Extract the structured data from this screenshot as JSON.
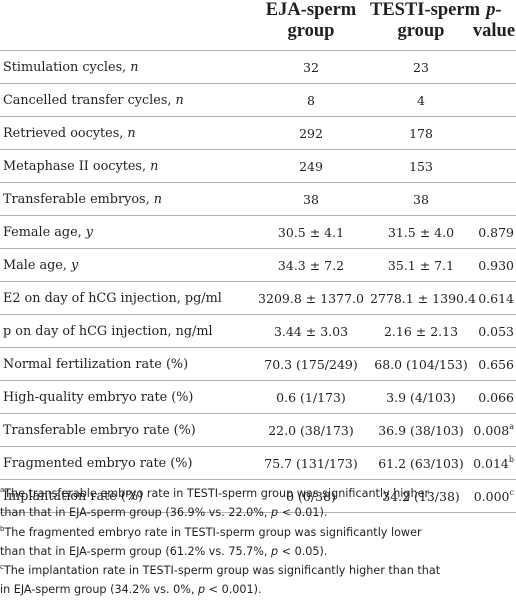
{
  "headers": [
    {
      "line1": "",
      "line2": ""
    },
    {
      "line1": "EJA-sperm",
      "line2": "group"
    },
    {
      "line1": "TESTI-sperm",
      "line2": "group"
    },
    {
      "line1": "p-",
      "line2": "value"
    }
  ],
  "rows": [
    {
      "label": "Stimulation cycles, ",
      "unit": "n",
      "ej": "32",
      "testi": "23",
      "p": "",
      "sup": ""
    },
    {
      "label": "Cancelled transfer cycles, ",
      "unit": "n",
      "ej": "8",
      "testi": "4",
      "p": "",
      "sup": ""
    },
    {
      "label": "Retrieved oocytes, ",
      "unit": "n",
      "ej": "292",
      "testi": "178",
      "p": "",
      "sup": ""
    },
    {
      "label": "Metaphase II oocytes, ",
      "unit": "n",
      "ej": "249",
      "testi": "153",
      "p": "",
      "sup": ""
    },
    {
      "label": "Transferable embryos, ",
      "unit": "n",
      "ej": "38",
      "testi": "38",
      "p": "",
      "sup": ""
    },
    {
      "label": "Female age, ",
      "unit": "y",
      "ej": "30.5 ± 4.1",
      "testi": "31.5 ± 4.0",
      "p": "0.879",
      "sup": ""
    },
    {
      "label": "Male age, ",
      "unit": "y",
      "ej": "34.3 ± 7.2",
      "testi": "35.1 ± 7.1",
      "p": "0.930",
      "sup": ""
    },
    {
      "label": "E2 on day of hCG injection, pg/ml",
      "unit": "",
      "ej": "3209.8 ± 1377.0",
      "testi": "2778.1 ± 1390.4",
      "p": "0.614",
      "sup": ""
    },
    {
      "label": "p on day of hCG injection, ng/ml",
      "unit": "",
      "ej": "3.44 ± 3.03",
      "testi": "2.16 ± 2.13",
      "p": "0.053",
      "sup": ""
    },
    {
      "label": "Normal fertilization rate (%)",
      "unit": "",
      "ej": "70.3 (175/249)",
      "testi": "68.0 (104/153)",
      "p": "0.656",
      "sup": ""
    },
    {
      "label": "High-quality embryo rate (%)",
      "unit": "",
      "ej": "0.6 (1/173)",
      "testi": "3.9 (4/103)",
      "p": "0.066",
      "sup": ""
    },
    {
      "label": "Transferable embryo rate (%)",
      "unit": "",
      "ej": "22.0 (38/173)",
      "testi": "36.9 (38/103)",
      "p": "0.008",
      "sup": "a"
    },
    {
      "label": "Fragmented embryo rate (%)",
      "unit": "",
      "ej": "75.7 (131/173)",
      "testi": "61.2 (63/103)",
      "p": "0.014",
      "sup": "b"
    },
    {
      "label": "Implantation rate (%)",
      "unit": "",
      "ej": "0 (0/38)",
      "testi": "34.2 (13/38)",
      "p": "0.000",
      "sup": "c"
    }
  ],
  "footnotes": [
    {
      "mark": "a",
      "lines": [
        "The transferable embryo rate in TESTI-sperm group was significantly higher",
        "than that in EJA-sperm group (36.9% vs. 22.0%, p < 0.01)."
      ]
    },
    {
      "mark": "b",
      "lines": [
        "The fragmented embryo rate in TESTI-sperm group was significantly lower",
        "than that in EJA-sperm group (61.2% vs. 75.7%, p < 0.05)."
      ]
    },
    {
      "mark": "c",
      "lines": [
        "The implantation rate in TESTI-sperm group was significantly higher than that",
        "in EJA-sperm group (34.2% vs. 0%, p < 0.001)."
      ]
    }
  ]
}
